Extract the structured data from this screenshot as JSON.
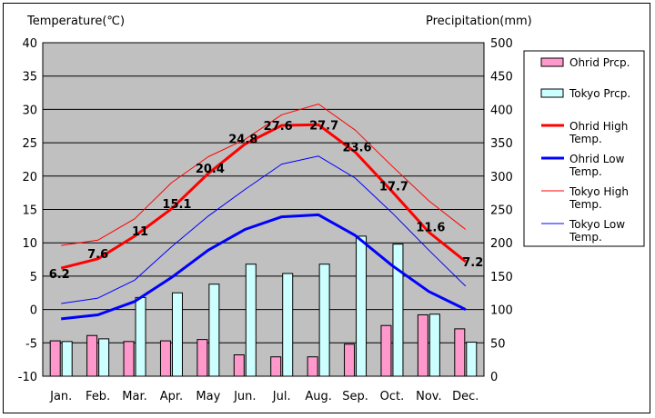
{
  "chart_data": {
    "type": "bar+line",
    "ylabel_left": "Temperature(℃)",
    "ylabel_right": "Precipitation(mm)",
    "ylim_left": [
      -10,
      40
    ],
    "ylim_right": [
      0,
      500
    ],
    "yticks_left": [
      "40",
      "35",
      "30",
      "25",
      "20",
      "15",
      "10",
      "5",
      "0",
      "-5",
      "-10"
    ],
    "yticks_right": [
      "500",
      "450",
      "400",
      "350",
      "300",
      "250",
      "200",
      "150",
      "100",
      "50",
      "0"
    ],
    "categories": [
      "Jan.",
      "Feb.",
      "Mar.",
      "Apr.",
      "May",
      "Jun.",
      "Jul.",
      "Aug.",
      "Sep.",
      "Oct.",
      "Nov.",
      "Dec."
    ],
    "grid": true,
    "plot_background": "#c0c0c0",
    "legend_position": "right",
    "bar_series": [
      {
        "name": "Ohrid Prcp.",
        "color": "#ff99cc",
        "values": [
          53,
          61,
          52,
          53,
          55,
          32,
          29,
          29,
          48,
          76,
          92,
          71
        ]
      },
      {
        "name": "Tokyo Prcp.",
        "color": "#ccffff",
        "values": [
          52,
          56,
          118,
          125,
          138,
          168,
          154,
          168,
          210,
          198,
          93,
          51
        ]
      }
    ],
    "line_series": [
      {
        "name": "Ohrid High Temp.",
        "color": "#ff0000",
        "width": 3,
        "values": [
          6.2,
          7.6,
          11,
          15.1,
          20.4,
          24.8,
          27.6,
          27.7,
          23.6,
          17.7,
          11.6,
          7.2
        ],
        "labels": [
          "6.2",
          "7.6",
          "11",
          "15.1",
          "20.4",
          "24.8",
          "27.6",
          "27.7",
          "23.6",
          "17.7",
          "11.6",
          "7.2"
        ]
      },
      {
        "name": "Ohrid Low Temp.",
        "color": "#0000ff",
        "width": 3,
        "values": [
          -1.4,
          -0.8,
          1.2,
          4.8,
          8.9,
          12.0,
          13.9,
          14.2,
          11.1,
          6.6,
          2.7,
          0.0
        ]
      },
      {
        "name": "Tokyo High Temp.",
        "color": "#ff0000",
        "width": 1,
        "values": [
          9.6,
          10.4,
          13.6,
          19.0,
          22.9,
          25.5,
          29.2,
          30.8,
          26.9,
          21.5,
          16.3,
          12.0
        ]
      },
      {
        "name": "Tokyo Low Temp.",
        "color": "#0000ff",
        "width": 1,
        "values": [
          0.9,
          1.7,
          4.4,
          9.4,
          14.0,
          18.0,
          21.8,
          23.0,
          19.7,
          14.5,
          8.9,
          3.5
        ]
      }
    ],
    "legend": [
      {
        "kind": "bar",
        "label": "Ohrid Prcp.",
        "color": "#ff99cc"
      },
      {
        "kind": "bar",
        "label": "Tokyo Prcp.",
        "color": "#ccffff"
      },
      {
        "kind": "line",
        "label": [
          "Ohrid High",
          "Temp."
        ],
        "color": "#ff0000",
        "width": 3
      },
      {
        "kind": "line",
        "label": [
          "Ohrid Low",
          "Temp."
        ],
        "color": "#0000ff",
        "width": 3
      },
      {
        "kind": "line",
        "label": [
          "Tokyo High",
          "Temp."
        ],
        "color": "#ff0000",
        "width": 1
      },
      {
        "kind": "line",
        "label": [
          "Tokyo Low",
          "Temp."
        ],
        "color": "#0000ff",
        "width": 1
      }
    ]
  }
}
